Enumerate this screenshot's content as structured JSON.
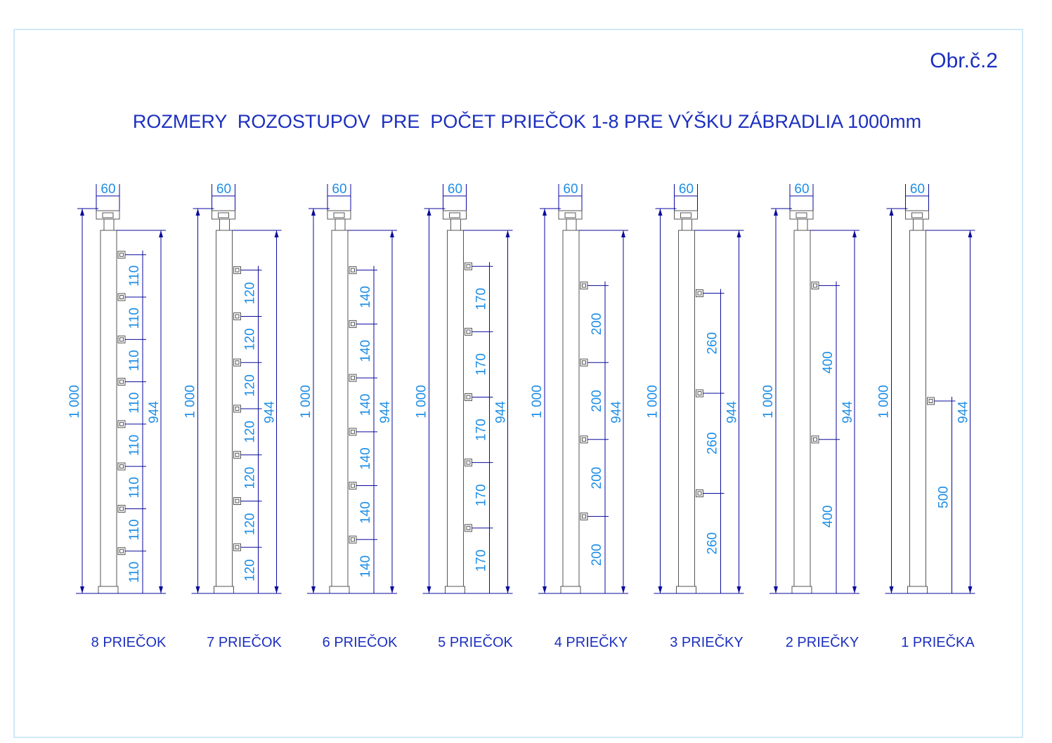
{
  "figure_label": "Obr.č.2",
  "title": "ROZMERY  ROZOSTUPOV  PRE  POČET PRIEČOK 1-8 PRE VÝŠKU ZÁBRADLIA 1000mm",
  "posts": [
    {
      "width": "60",
      "height": "1 000",
      "inner_height": "944",
      "spacings": [
        "110",
        "110",
        "110",
        "110",
        "110",
        "110",
        "110",
        "110"
      ],
      "caption": "8 PRIEČOK"
    },
    {
      "width": "60",
      "height": "1 000",
      "inner_height": "944",
      "spacings": [
        "120",
        "120",
        "120",
        "120",
        "120",
        "120",
        "120"
      ],
      "caption": "7 PRIEČOK"
    },
    {
      "width": "60",
      "height": "1 000",
      "inner_height": "944",
      "spacings": [
        "140",
        "140",
        "140",
        "140",
        "140",
        "140"
      ],
      "caption": "6 PRIEČOK"
    },
    {
      "width": "60",
      "height": "1 000",
      "inner_height": "944",
      "spacings": [
        "170",
        "170",
        "170",
        "170",
        "170"
      ],
      "caption": "5 PRIEČOK"
    },
    {
      "width": "60",
      "height": "1 000",
      "inner_height": "944",
      "spacings": [
        "200",
        "200",
        "200",
        "200"
      ],
      "caption": "4 PRIEČKY"
    },
    {
      "width": "60",
      "height": "1 000",
      "inner_height": "944",
      "spacings": [
        "260",
        "260",
        "260"
      ],
      "caption": "3 PRIEČKY"
    },
    {
      "width": "60",
      "height": "1 000",
      "inner_height": "944",
      "spacings": [
        "400",
        "400"
      ],
      "caption": "2 PRIEČKY"
    },
    {
      "width": "60",
      "height": "1 000",
      "inner_height": "944",
      "spacings": [
        "500"
      ],
      "caption": "1 PRIEČKA"
    }
  ]
}
